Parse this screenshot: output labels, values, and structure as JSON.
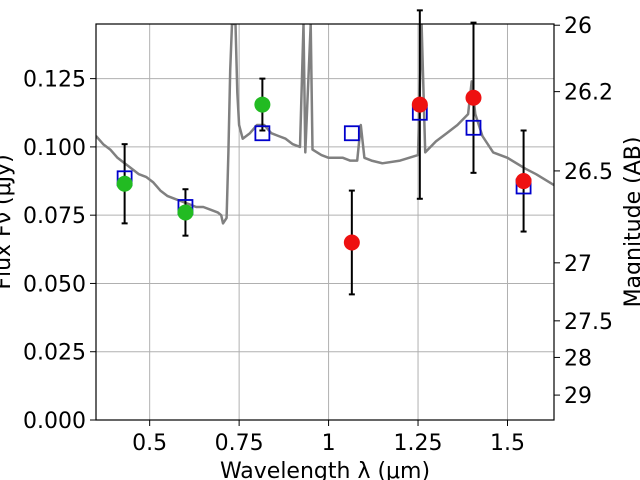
{
  "chart_data": {
    "type": "scatter",
    "xlabel": "Wavelength λ (μm)",
    "ylabel": "Flux Fν (μJy)",
    "ylabel2": "Magnitude (AB)",
    "xlim": [
      0.35,
      1.63
    ],
    "ylim": [
      0.0,
      0.145
    ],
    "grid": true,
    "x_ticks": [
      {
        "value": 0.5,
        "label": "0.5"
      },
      {
        "value": 0.75,
        "label": "0.75"
      },
      {
        "value": 1.0,
        "label": "1"
      },
      {
        "value": 1.25,
        "label": "1.25"
      },
      {
        "value": 1.5,
        "label": "1.5"
      }
    ],
    "y_ticks": [
      {
        "value": 0.0,
        "label": "0.000"
      },
      {
        "value": 0.025,
        "label": "0.025"
      },
      {
        "value": 0.05,
        "label": "0.050"
      },
      {
        "value": 0.075,
        "label": "0.075"
      },
      {
        "value": 0.1,
        "label": "0.100"
      },
      {
        "value": 0.125,
        "label": "0.125"
      }
    ],
    "y2_ticks": [
      {
        "label": "26",
        "mag": 26.0
      },
      {
        "label": "26.2",
        "mag": 26.2
      },
      {
        "label": "26.5",
        "mag": 26.5
      },
      {
        "label": "27",
        "mag": 27.0
      },
      {
        "label": "27.5",
        "mag": 27.5
      },
      {
        "label": "28",
        "mag": 28.0
      },
      {
        "label": "29",
        "mag": 29.0
      }
    ],
    "colors": {
      "model": "#808080",
      "detection": "#22bb22",
      "upper": "#ee1111",
      "model_phot": "#0000cc",
      "errorbar": "#000000",
      "grid": "#b0b0b0"
    },
    "model_spectrum": [
      [
        0.35,
        0.104
      ],
      [
        0.37,
        0.101
      ],
      [
        0.39,
        0.099
      ],
      [
        0.41,
        0.096
      ],
      [
        0.43,
        0.094
      ],
      [
        0.45,
        0.092
      ],
      [
        0.47,
        0.09
      ],
      [
        0.49,
        0.089
      ],
      [
        0.51,
        0.087
      ],
      [
        0.53,
        0.084
      ],
      [
        0.55,
        0.082
      ],
      [
        0.57,
        0.081
      ],
      [
        0.59,
        0.08
      ],
      [
        0.61,
        0.079
      ],
      [
        0.63,
        0.078
      ],
      [
        0.65,
        0.078
      ],
      [
        0.67,
        0.077
      ],
      [
        0.69,
        0.076
      ],
      [
        0.7,
        0.075
      ],
      [
        0.705,
        0.072
      ],
      [
        0.715,
        0.074
      ],
      [
        0.72,
        0.098
      ],
      [
        0.725,
        0.128
      ],
      [
        0.73,
        0.145
      ],
      [
        0.74,
        0.145
      ],
      [
        0.745,
        0.12
      ],
      [
        0.75,
        0.108
      ],
      [
        0.76,
        0.103
      ],
      [
        0.78,
        0.105
      ],
      [
        0.8,
        0.108
      ],
      [
        0.82,
        0.108
      ],
      [
        0.84,
        0.105
      ],
      [
        0.86,
        0.104
      ],
      [
        0.88,
        0.103
      ],
      [
        0.9,
        0.101
      ],
      [
        0.92,
        0.1
      ],
      [
        0.93,
        0.145
      ],
      [
        0.935,
        0.098
      ],
      [
        0.95,
        0.145
      ],
      [
        0.955,
        0.099
      ],
      [
        0.98,
        0.097
      ],
      [
        1.0,
        0.096
      ],
      [
        1.02,
        0.096
      ],
      [
        1.04,
        0.096
      ],
      [
        1.06,
        0.095
      ],
      [
        1.08,
        0.095
      ],
      [
        1.09,
        0.108
      ],
      [
        1.1,
        0.096
      ],
      [
        1.12,
        0.095
      ],
      [
        1.15,
        0.094
      ],
      [
        1.2,
        0.095
      ],
      [
        1.25,
        0.097
      ],
      [
        1.26,
        0.145
      ],
      [
        1.27,
        0.098
      ],
      [
        1.3,
        0.102
      ],
      [
        1.33,
        0.105
      ],
      [
        1.36,
        0.108
      ],
      [
        1.39,
        0.112
      ],
      [
        1.4,
        0.124
      ],
      [
        1.41,
        0.112
      ],
      [
        1.43,
        0.104
      ],
      [
        1.46,
        0.098
      ],
      [
        1.5,
        0.096
      ],
      [
        1.55,
        0.092
      ],
      [
        1.58,
        0.09
      ],
      [
        1.63,
        0.086
      ]
    ],
    "photometry": [
      {
        "x": 0.43,
        "y": 0.0865,
        "err": 0.0145,
        "kind": "detection",
        "model": 0.0885
      },
      {
        "x": 0.6,
        "y": 0.076,
        "err": 0.0085,
        "kind": "detection",
        "model": 0.078
      },
      {
        "x": 0.815,
        "y": 0.1155,
        "err": 0.0095,
        "kind": "detection",
        "model": 0.105
      },
      {
        "x": 1.065,
        "y": 0.065,
        "err": 0.019,
        "kind": "upper",
        "model": 0.105
      },
      {
        "x": 1.255,
        "y": 0.1155,
        "err": 0.0345,
        "kind": "upper",
        "model": 0.1125
      },
      {
        "x": 1.405,
        "y": 0.118,
        "err": 0.0275,
        "kind": "upper",
        "model": 0.107
      },
      {
        "x": 1.545,
        "y": 0.0875,
        "err": 0.0185,
        "kind": "upper",
        "model": 0.0855
      }
    ]
  }
}
